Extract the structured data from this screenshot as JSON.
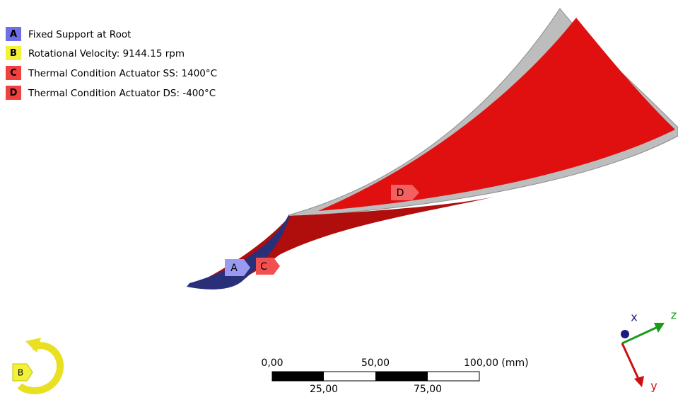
{
  "legend": [
    {
      "letter": "A",
      "text": "Fixed Support at Root"
    },
    {
      "letter": "B",
      "text": "Rotational Velocity: 9144.15 rpm"
    },
    {
      "letter": "C",
      "text": "Thermal Condition Actuator SS: 1400°C"
    },
    {
      "letter": "D",
      "text": "Thermal Condition Actuator DS: -400°C"
    }
  ],
  "model_tags": [
    "A",
    "C",
    "D"
  ],
  "rotation_tag": "B",
  "scale_bar": {
    "top_labels": [
      "0,00",
      "50,00",
      "100,00 (mm)"
    ],
    "bottom_labels": [
      "25,00",
      "75,00"
    ]
  },
  "triad": {
    "x": "x",
    "y": "y",
    "z": "z"
  }
}
